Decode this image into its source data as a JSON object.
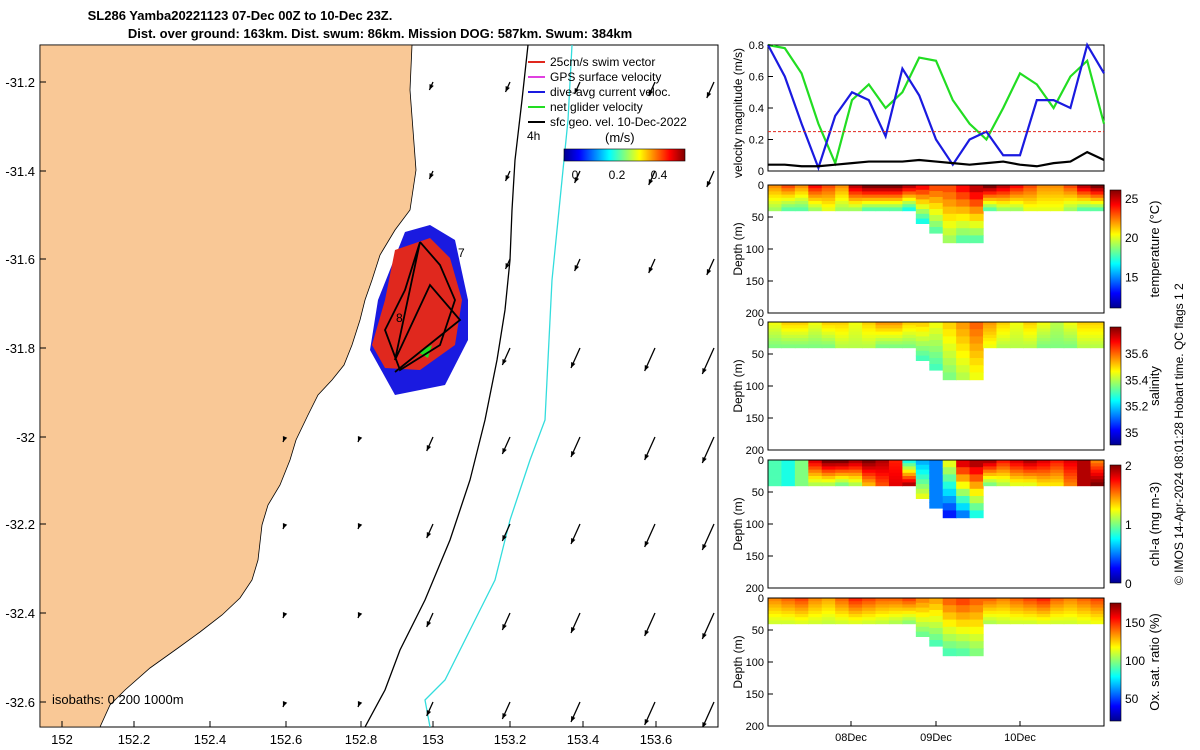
{
  "title_line1": "SL286 Yamba20221123 07-Dec 00Z to 10-Dec 23Z.",
  "title_line2": "Dist. over ground: 163km. Dist. swum: 86km. Mission DOG: 587km. Swum: 384km",
  "side_note": "© IMOS 14-Apr-2024 08:01:28 Hobart time. QC flags 1  2",
  "map": {
    "xticks": [
      "152",
      "152.2",
      "152.4",
      "152.6",
      "152.8",
      "153",
      "153.2",
      "153.4",
      "153.6"
    ],
    "yticks": [
      "-31.2",
      "-31.4",
      "-31.6",
      "-31.8",
      "-32",
      "-32.2",
      "-32.4",
      "-32.6"
    ],
    "legend": [
      "25cm/s swim vector",
      "GPS surface velocity",
      "dive-avg current veloc.",
      "net glider velocity",
      "sfc geo. vel. 10-Dec-2022"
    ],
    "legend_colors": [
      "#e0281e",
      "#e040e0",
      "#1a1ae0",
      "#22dd22",
      "#000000"
    ],
    "time_label": "4h",
    "colorbar_label": "(m/s)",
    "colorbar_ticks": [
      "0",
      "0.2",
      "0.4"
    ],
    "day_labels": [
      "7",
      "8"
    ],
    "isobaths_label": "isobaths: 0   200  1000m",
    "colors": {
      "land": "#f9c896",
      "sea": "#ffffff",
      "isobath_200": "#000000",
      "isobath_1000": "#33dddd"
    }
  },
  "chart_data": [
    {
      "type": "line",
      "ylabel": "velocity magnitude (m/s)",
      "ylim": [
        0,
        0.8
      ],
      "yticks": [
        "0",
        "0.2",
        "0.4",
        "0.6",
        "0.8"
      ],
      "x_days": [
        0,
        0.2,
        0.4,
        0.6,
        0.8,
        1.0,
        1.2,
        1.4,
        1.6,
        1.8,
        2.0,
        2.2,
        2.4,
        2.6,
        2.8,
        3.0,
        3.2,
        3.4,
        3.6,
        3.8,
        4.0
      ],
      "series": [
        {
          "color": "#22dd22",
          "values": [
            0.8,
            0.78,
            0.62,
            0.3,
            0.05,
            0.45,
            0.55,
            0.4,
            0.5,
            0.72,
            0.7,
            0.45,
            0.3,
            0.2,
            0.4,
            0.62,
            0.55,
            0.4,
            0.6,
            0.7,
            0.3
          ]
        },
        {
          "color": "#1a1ae0",
          "values": [
            0.8,
            0.6,
            0.3,
            0.02,
            0.35,
            0.5,
            0.45,
            0.22,
            0.65,
            0.48,
            0.2,
            0.04,
            0.2,
            0.25,
            0.1,
            0.1,
            0.45,
            0.45,
            0.4,
            0.8,
            0.62
          ]
        },
        {
          "color": "#e0281e",
          "values": [
            0.25,
            0.25,
            0.25,
            0.25,
            0.25,
            0.25,
            0.25,
            0.25,
            0.25,
            0.25,
            0.25,
            0.25,
            0.25,
            0.25,
            0.25,
            0.25,
            0.25,
            0.25,
            0.25,
            0.25,
            0.25
          ]
        },
        {
          "color": "#000000",
          "values": [
            0.04,
            0.04,
            0.03,
            0.03,
            0.04,
            0.05,
            0.06,
            0.06,
            0.06,
            0.07,
            0.06,
            0.05,
            0.04,
            0.05,
            0.06,
            0.04,
            0.03,
            0.05,
            0.06,
            0.12,
            0.07
          ]
        }
      ]
    },
    {
      "type": "heatmap",
      "ylabel": "Depth (m)",
      "cbar_label": "temperature (°C)",
      "clim": [
        11,
        26
      ],
      "cbar_ticks": [
        "15",
        "20",
        "25"
      ],
      "ylim": [
        0,
        200
      ],
      "yticks": [
        "0",
        "50",
        "100",
        "150",
        "200"
      ],
      "surface_profile": [
        22,
        23,
        22,
        24,
        23,
        22,
        25,
        26,
        26,
        26,
        25,
        24,
        23,
        23,
        24,
        25,
        26,
        25,
        24,
        23,
        22,
        22,
        23,
        25,
        26
      ],
      "bottom_profile": [
        19,
        18,
        18,
        19,
        20,
        19,
        19,
        18,
        18,
        18,
        17,
        17,
        18,
        19,
        18,
        18,
        18,
        19,
        19,
        20,
        20,
        20,
        19,
        18,
        18
      ],
      "max_depth": [
        40,
        40,
        40,
        40,
        40,
        40,
        40,
        40,
        40,
        40,
        40,
        60,
        75,
        90,
        90,
        90,
        40,
        40,
        40,
        40,
        40,
        40,
        40,
        40,
        40
      ]
    },
    {
      "type": "heatmap",
      "ylabel": "Depth (m)",
      "cbar_label": "salinity",
      "clim": [
        34.9,
        35.8
      ],
      "cbar_ticks": [
        "35",
        "35.2",
        "35.4",
        "35.6"
      ],
      "ylim": [
        0,
        200
      ],
      "yticks": [
        "0",
        "50",
        "100",
        "150",
        "200"
      ],
      "surface_profile": [
        35.45,
        35.5,
        35.5,
        35.45,
        35.5,
        35.5,
        35.45,
        35.5,
        35.55,
        35.55,
        35.5,
        35.5,
        35.45,
        35.5,
        35.55,
        35.6,
        35.55,
        35.5,
        35.45,
        35.5,
        35.45,
        35.4,
        35.45,
        35.5,
        35.5
      ],
      "bottom_profile": [
        35.35,
        35.35,
        35.35,
        35.35,
        35.35,
        35.4,
        35.4,
        35.4,
        35.35,
        35.35,
        35.35,
        35.3,
        35.3,
        35.35,
        35.4,
        35.45,
        35.45,
        35.4,
        35.4,
        35.4,
        35.35,
        35.35,
        35.35,
        35.4,
        35.4
      ],
      "max_depth": [
        40,
        40,
        40,
        40,
        40,
        40,
        40,
        40,
        40,
        40,
        40,
        60,
        75,
        90,
        90,
        90,
        40,
        40,
        40,
        40,
        40,
        40,
        40,
        40,
        40
      ]
    },
    {
      "type": "heatmap",
      "ylabel": "Depth (m)",
      "cbar_label": "chl-a (mg m-3)",
      "clim": [
        0,
        2
      ],
      "cbar_ticks": [
        "0",
        "1",
        "2"
      ],
      "ylim": [
        0,
        200
      ],
      "yticks": [
        "0",
        "50",
        "100",
        "150",
        "200"
      ],
      "surface_profile": [
        0.9,
        0.8,
        1.0,
        1.8,
        2.0,
        2.0,
        1.9,
        2.0,
        1.9,
        1.7,
        0.8,
        0.6,
        0.5,
        1.2,
        1.8,
        1.9,
        1.9,
        1.7,
        1.8,
        1.9,
        1.8,
        1.7,
        1.8,
        1.9,
        1.5
      ],
      "bottom_profile": [
        0.9,
        0.8,
        1.0,
        1.1,
        1.1,
        1.0,
        1.1,
        1.4,
        1.6,
        1.8,
        1.9,
        1.2,
        0.5,
        0.3,
        0.5,
        0.8,
        1.0,
        1.1,
        1.2,
        1.2,
        1.3,
        1.3,
        1.5,
        1.9,
        2.0
      ],
      "max_depth": [
        40,
        40,
        40,
        40,
        40,
        40,
        40,
        40,
        40,
        40,
        40,
        60,
        75,
        90,
        90,
        90,
        40,
        40,
        40,
        40,
        40,
        40,
        40,
        40,
        40
      ]
    },
    {
      "type": "heatmap",
      "ylabel": "Depth (m)",
      "cbar_label": "Ox. sat. ratio (%)",
      "clim": [
        20,
        175
      ],
      "cbar_ticks": [
        "50",
        "100",
        "150"
      ],
      "ylim": [
        0,
        200
      ],
      "yticks": [
        "0",
        "50",
        "100",
        "150",
        "200"
      ],
      "surface_profile": [
        135,
        140,
        145,
        135,
        130,
        140,
        150,
        145,
        140,
        140,
        145,
        135,
        130,
        140,
        145,
        140,
        140,
        135,
        140,
        145,
        150,
        140,
        135,
        140,
        145
      ],
      "bottom_profile": [
        110,
        110,
        112,
        110,
        108,
        110,
        112,
        110,
        108,
        105,
        100,
        95,
        90,
        90,
        92,
        98,
        105,
        108,
        110,
        110,
        112,
        110,
        110,
        112,
        115
      ],
      "max_depth": [
        40,
        40,
        40,
        40,
        40,
        40,
        40,
        40,
        40,
        40,
        40,
        60,
        75,
        90,
        90,
        90,
        40,
        40,
        40,
        40,
        40,
        40,
        40,
        40,
        40
      ]
    }
  ],
  "xaxis_dates": [
    "08Dec",
    "09Dec",
    "10Dec"
  ]
}
